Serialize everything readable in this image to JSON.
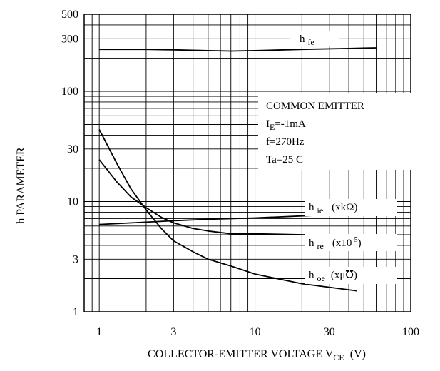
{
  "chart_data": {
    "type": "line",
    "scale": {
      "x": "log",
      "y": "log"
    },
    "xlabel": "COLLECTOR-EMITTER VOLTAGE V",
    "xlabel_sub": "CE",
    "xlabel_unit": "(V)",
    "ylabel": "h PARAMETER",
    "xlim": [
      0.8,
      100
    ],
    "ylim": [
      1,
      500
    ],
    "x_ticks": [
      1,
      3,
      10,
      30,
      100
    ],
    "x_tick_labels": [
      "1",
      "3",
      "10",
      "30",
      "100"
    ],
    "y_ticks": [
      1,
      3,
      10,
      30,
      100,
      300,
      500
    ],
    "y_tick_labels": [
      "1",
      "3",
      "10",
      "30",
      "100",
      "300",
      "500"
    ],
    "grid": true,
    "annotation_box": {
      "lines": [
        "COMMON EMITTER",
        "I",
        "=-1mA",
        "f=270Hz",
        "Ta=25   C"
      ],
      "line2_sub": "E"
    },
    "series": [
      {
        "name": "h fe",
        "label_main": "h",
        "label_sub": "fe",
        "label_unit": "",
        "points": [
          [
            1,
            240
          ],
          [
            2,
            240
          ],
          [
            3,
            238
          ],
          [
            5,
            234
          ],
          [
            7,
            232
          ],
          [
            10,
            234
          ],
          [
            20,
            240
          ],
          [
            40,
            245
          ],
          [
            60,
            248
          ]
        ]
      },
      {
        "name": "h ie (xkΩ)",
        "label_main": "h",
        "label_sub": "ie",
        "label_unit": "(xkΩ)",
        "points": [
          [
            1,
            6.2
          ],
          [
            2,
            6.5
          ],
          [
            3,
            6.7
          ],
          [
            5,
            6.9
          ],
          [
            10,
            7.1
          ],
          [
            20,
            7.4
          ],
          [
            40,
            7.7
          ],
          [
            60,
            7.9
          ]
        ]
      },
      {
        "name": "h re (x10-5)",
        "label_main": "h",
        "label_sub": "re",
        "label_unit_base": "(x10",
        "label_unit_sup": "-5",
        "label_unit_close": ")",
        "points": [
          [
            1,
            24
          ],
          [
            1.3,
            15
          ],
          [
            1.6,
            11
          ],
          [
            2,
            8.8
          ],
          [
            2.5,
            7.2
          ],
          [
            3,
            6.4
          ],
          [
            4,
            5.7
          ],
          [
            5,
            5.4
          ],
          [
            7,
            5.1
          ],
          [
            10,
            5.1
          ],
          [
            20,
            5.0
          ],
          [
            45,
            5.0
          ]
        ]
      },
      {
        "name": "h oe (xμ℧)",
        "label_main": "h",
        "label_sub": "oe",
        "label_unit": "(xμ℧)",
        "points": [
          [
            1,
            45
          ],
          [
            1.3,
            22
          ],
          [
            1.6,
            13
          ],
          [
            2,
            8.4
          ],
          [
            2.5,
            5.7
          ],
          [
            3,
            4.4
          ],
          [
            4,
            3.5
          ],
          [
            5,
            3.0
          ],
          [
            7,
            2.6
          ],
          [
            10,
            2.2
          ],
          [
            20,
            1.8
          ],
          [
            45,
            1.55
          ]
        ]
      }
    ]
  }
}
